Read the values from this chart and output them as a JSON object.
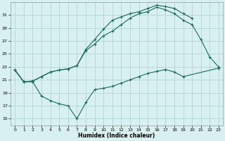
{
  "xlabel": "Humidex (Indice chaleur)",
  "bg_color": "#d8f0f0",
  "grid_color": "#b8d8d8",
  "line_color": "#1a6b5a",
  "xlim": [
    -0.5,
    23.5
  ],
  "ylim": [
    14,
    33
  ],
  "yticks": [
    15,
    17,
    19,
    21,
    23,
    25,
    27,
    29,
    31
  ],
  "xticks": [
    0,
    1,
    2,
    3,
    4,
    5,
    6,
    7,
    8,
    9,
    10,
    11,
    12,
    13,
    14,
    15,
    16,
    17,
    18,
    19,
    20,
    21,
    22,
    23
  ],
  "s1_x": [
    0,
    1,
    2,
    3,
    4,
    5,
    6,
    7,
    8,
    9,
    10,
    11,
    12,
    13,
    14,
    15,
    16,
    17,
    18,
    19,
    20,
    21,
    22,
    23
  ],
  "s1_y": [
    22.5,
    20.7,
    20.8,
    21.5,
    22.2,
    22.5,
    22.7,
    23.2,
    25.5,
    26.5,
    27.8,
    28.5,
    29.5,
    30.5,
    31.2,
    31.5,
    32.2,
    31.8,
    31.2,
    30.2,
    29.5,
    27.2,
    24.5,
    23.0
  ],
  "s2_x": [
    0,
    1,
    2,
    3,
    4,
    5,
    6,
    7,
    8,
    9,
    10,
    11,
    12,
    13,
    14,
    15,
    16,
    17,
    18,
    19,
    20
  ],
  "s2_y": [
    22.5,
    20.7,
    20.8,
    21.5,
    22.2,
    22.5,
    22.7,
    23.2,
    25.7,
    27.2,
    28.8,
    30.2,
    30.7,
    31.2,
    31.5,
    32.0,
    32.5,
    32.3,
    32.0,
    31.2,
    30.5
  ],
  "s3_x": [
    0,
    1,
    2,
    3,
    4,
    5,
    6,
    7,
    8,
    9,
    10,
    11,
    12,
    13,
    14,
    15,
    16,
    17,
    18,
    19,
    23
  ],
  "s3_y": [
    22.5,
    20.7,
    20.7,
    18.5,
    17.8,
    17.3,
    17.0,
    15.0,
    17.5,
    19.5,
    19.7,
    20.0,
    20.5,
    21.0,
    21.5,
    22.0,
    22.3,
    22.6,
    22.2,
    21.5,
    22.8
  ]
}
